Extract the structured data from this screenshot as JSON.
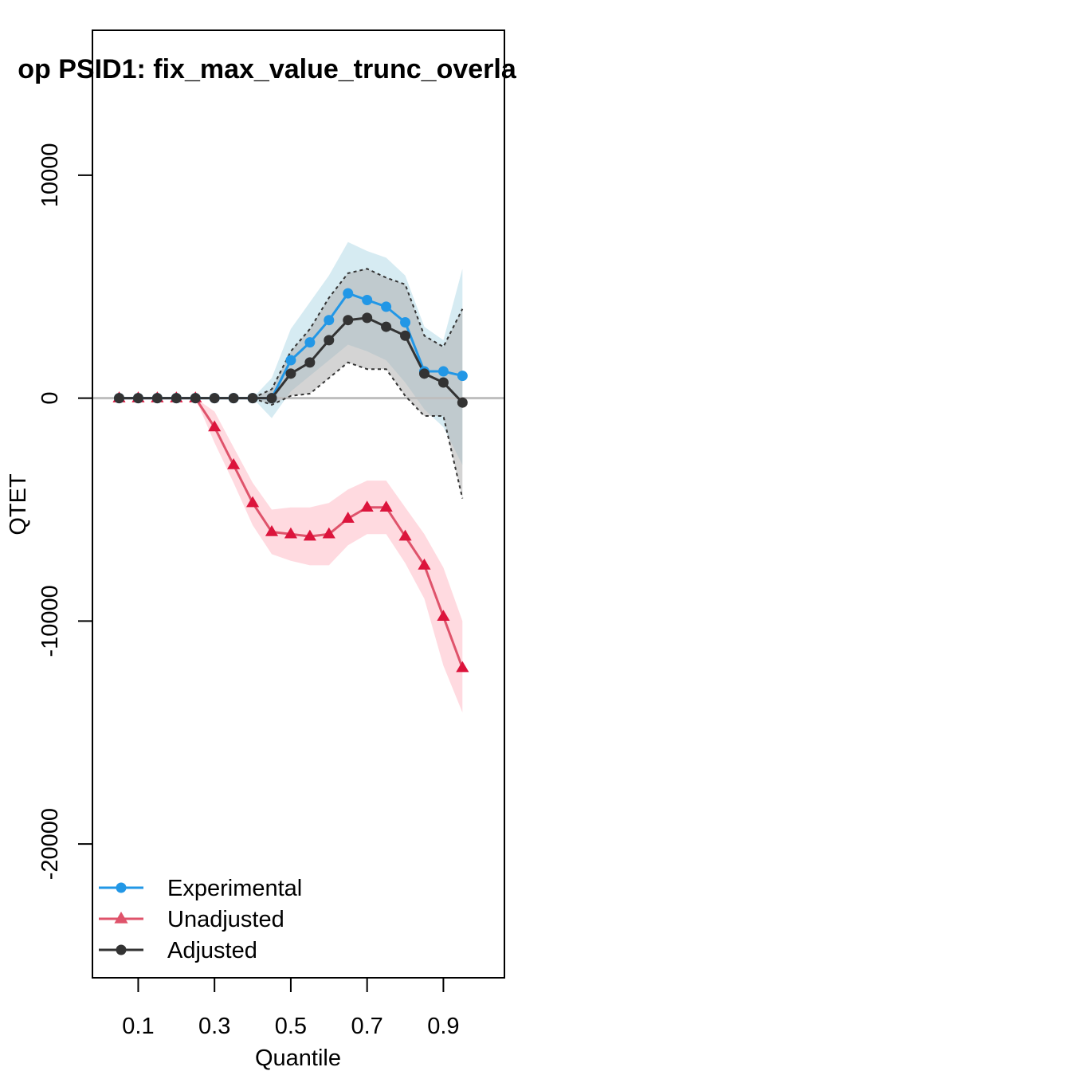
{
  "title": "op PSID1: fix_max_value_trunc_overla",
  "xlabel": "Quantile",
  "ylabel": "QTET",
  "chart_data": {
    "type": "line",
    "title": "op PSID1: fix_max_value_trunc_overla",
    "xlabel": "Quantile",
    "ylabel": "QTET",
    "xlim": [
      -0.02,
      1.06
    ],
    "ylim": [
      -26000,
      16500
    ],
    "xticks": [
      0.1,
      0.3,
      0.5,
      0.7,
      0.9
    ],
    "xtick_labels": [
      "0.1",
      "0.3",
      "0.5",
      "0.7",
      "0.9"
    ],
    "yticks": [
      -20000,
      -10000,
      0,
      10000
    ],
    "ytick_labels": [
      "-20000",
      "-10000",
      "0",
      "10000"
    ],
    "reference_line_y": 0,
    "grid": false,
    "legend_position": "bottom-left",
    "x": [
      0.05,
      0.1,
      0.15,
      0.2,
      0.25,
      0.3,
      0.35,
      0.4,
      0.45,
      0.5,
      0.55,
      0.6,
      0.65,
      0.7,
      0.75,
      0.8,
      0.85,
      0.9,
      0.95
    ],
    "series": [
      {
        "name": "Experimental",
        "color": "#2297E6",
        "band_color": "#ADD8E6",
        "marker": "circle",
        "values": [
          0,
          0,
          0,
          0,
          0,
          0,
          0,
          0,
          0,
          1700,
          2500,
          3500,
          4700,
          4400,
          4100,
          3400,
          1200,
          1200,
          1000
        ],
        "lower": [
          0,
          0,
          0,
          0,
          0,
          0,
          0,
          0,
          -900,
          300,
          1000,
          1700,
          2400,
          2100,
          1700,
          700,
          -500,
          -1300,
          -3000
        ],
        "upper": [
          0,
          0,
          0,
          0,
          0,
          0,
          0,
          0,
          900,
          3100,
          4300,
          5500,
          7000,
          6600,
          6300,
          5500,
          3200,
          2600,
          5800
        ]
      },
      {
        "name": "Unadjusted",
        "color": "#DF536B",
        "point_color": "#DC143C",
        "band_color": "#FFB6C1",
        "marker": "triangle",
        "values": [
          0,
          0,
          0,
          0,
          0,
          -1300,
          -3000,
          -4700,
          -6000,
          -6100,
          -6200,
          -6100,
          -5400,
          -4900,
          -4900,
          -6200,
          -7500,
          -9800,
          -12100
        ],
        "lower": [
          0,
          0,
          0,
          0,
          0,
          -2000,
          -3800,
          -5700,
          -7000,
          -7300,
          -7500,
          -7500,
          -6600,
          -6100,
          -6100,
          -7400,
          -9000,
          -12000,
          -14100
        ],
        "upper": [
          0,
          0,
          0,
          0,
          0,
          -600,
          -2200,
          -3800,
          -5000,
          -4900,
          -4900,
          -4700,
          -4100,
          -3700,
          -3700,
          -4900,
          -6100,
          -7600,
          -10000
        ]
      },
      {
        "name": "Adjusted",
        "color": "#333333",
        "marker": "circle",
        "values": [
          0,
          0,
          0,
          0,
          0,
          0,
          0,
          0,
          0,
          1100,
          1600,
          2600,
          3500,
          3600,
          3200,
          2800,
          1100,
          700,
          -200
        ],
        "lower": [
          0,
          0,
          0,
          0,
          0,
          0,
          0,
          0,
          -300,
          100,
          200,
          900,
          1600,
          1300,
          1300,
          100,
          -800,
          -800,
          -4500
        ],
        "upper": [
          0,
          0,
          0,
          0,
          0,
          0,
          0,
          0,
          400,
          2100,
          3100,
          4500,
          5600,
          5800,
          5400,
          5100,
          2800,
          2300,
          4000
        ],
        "band_color": "#A9A9A9"
      }
    ]
  }
}
